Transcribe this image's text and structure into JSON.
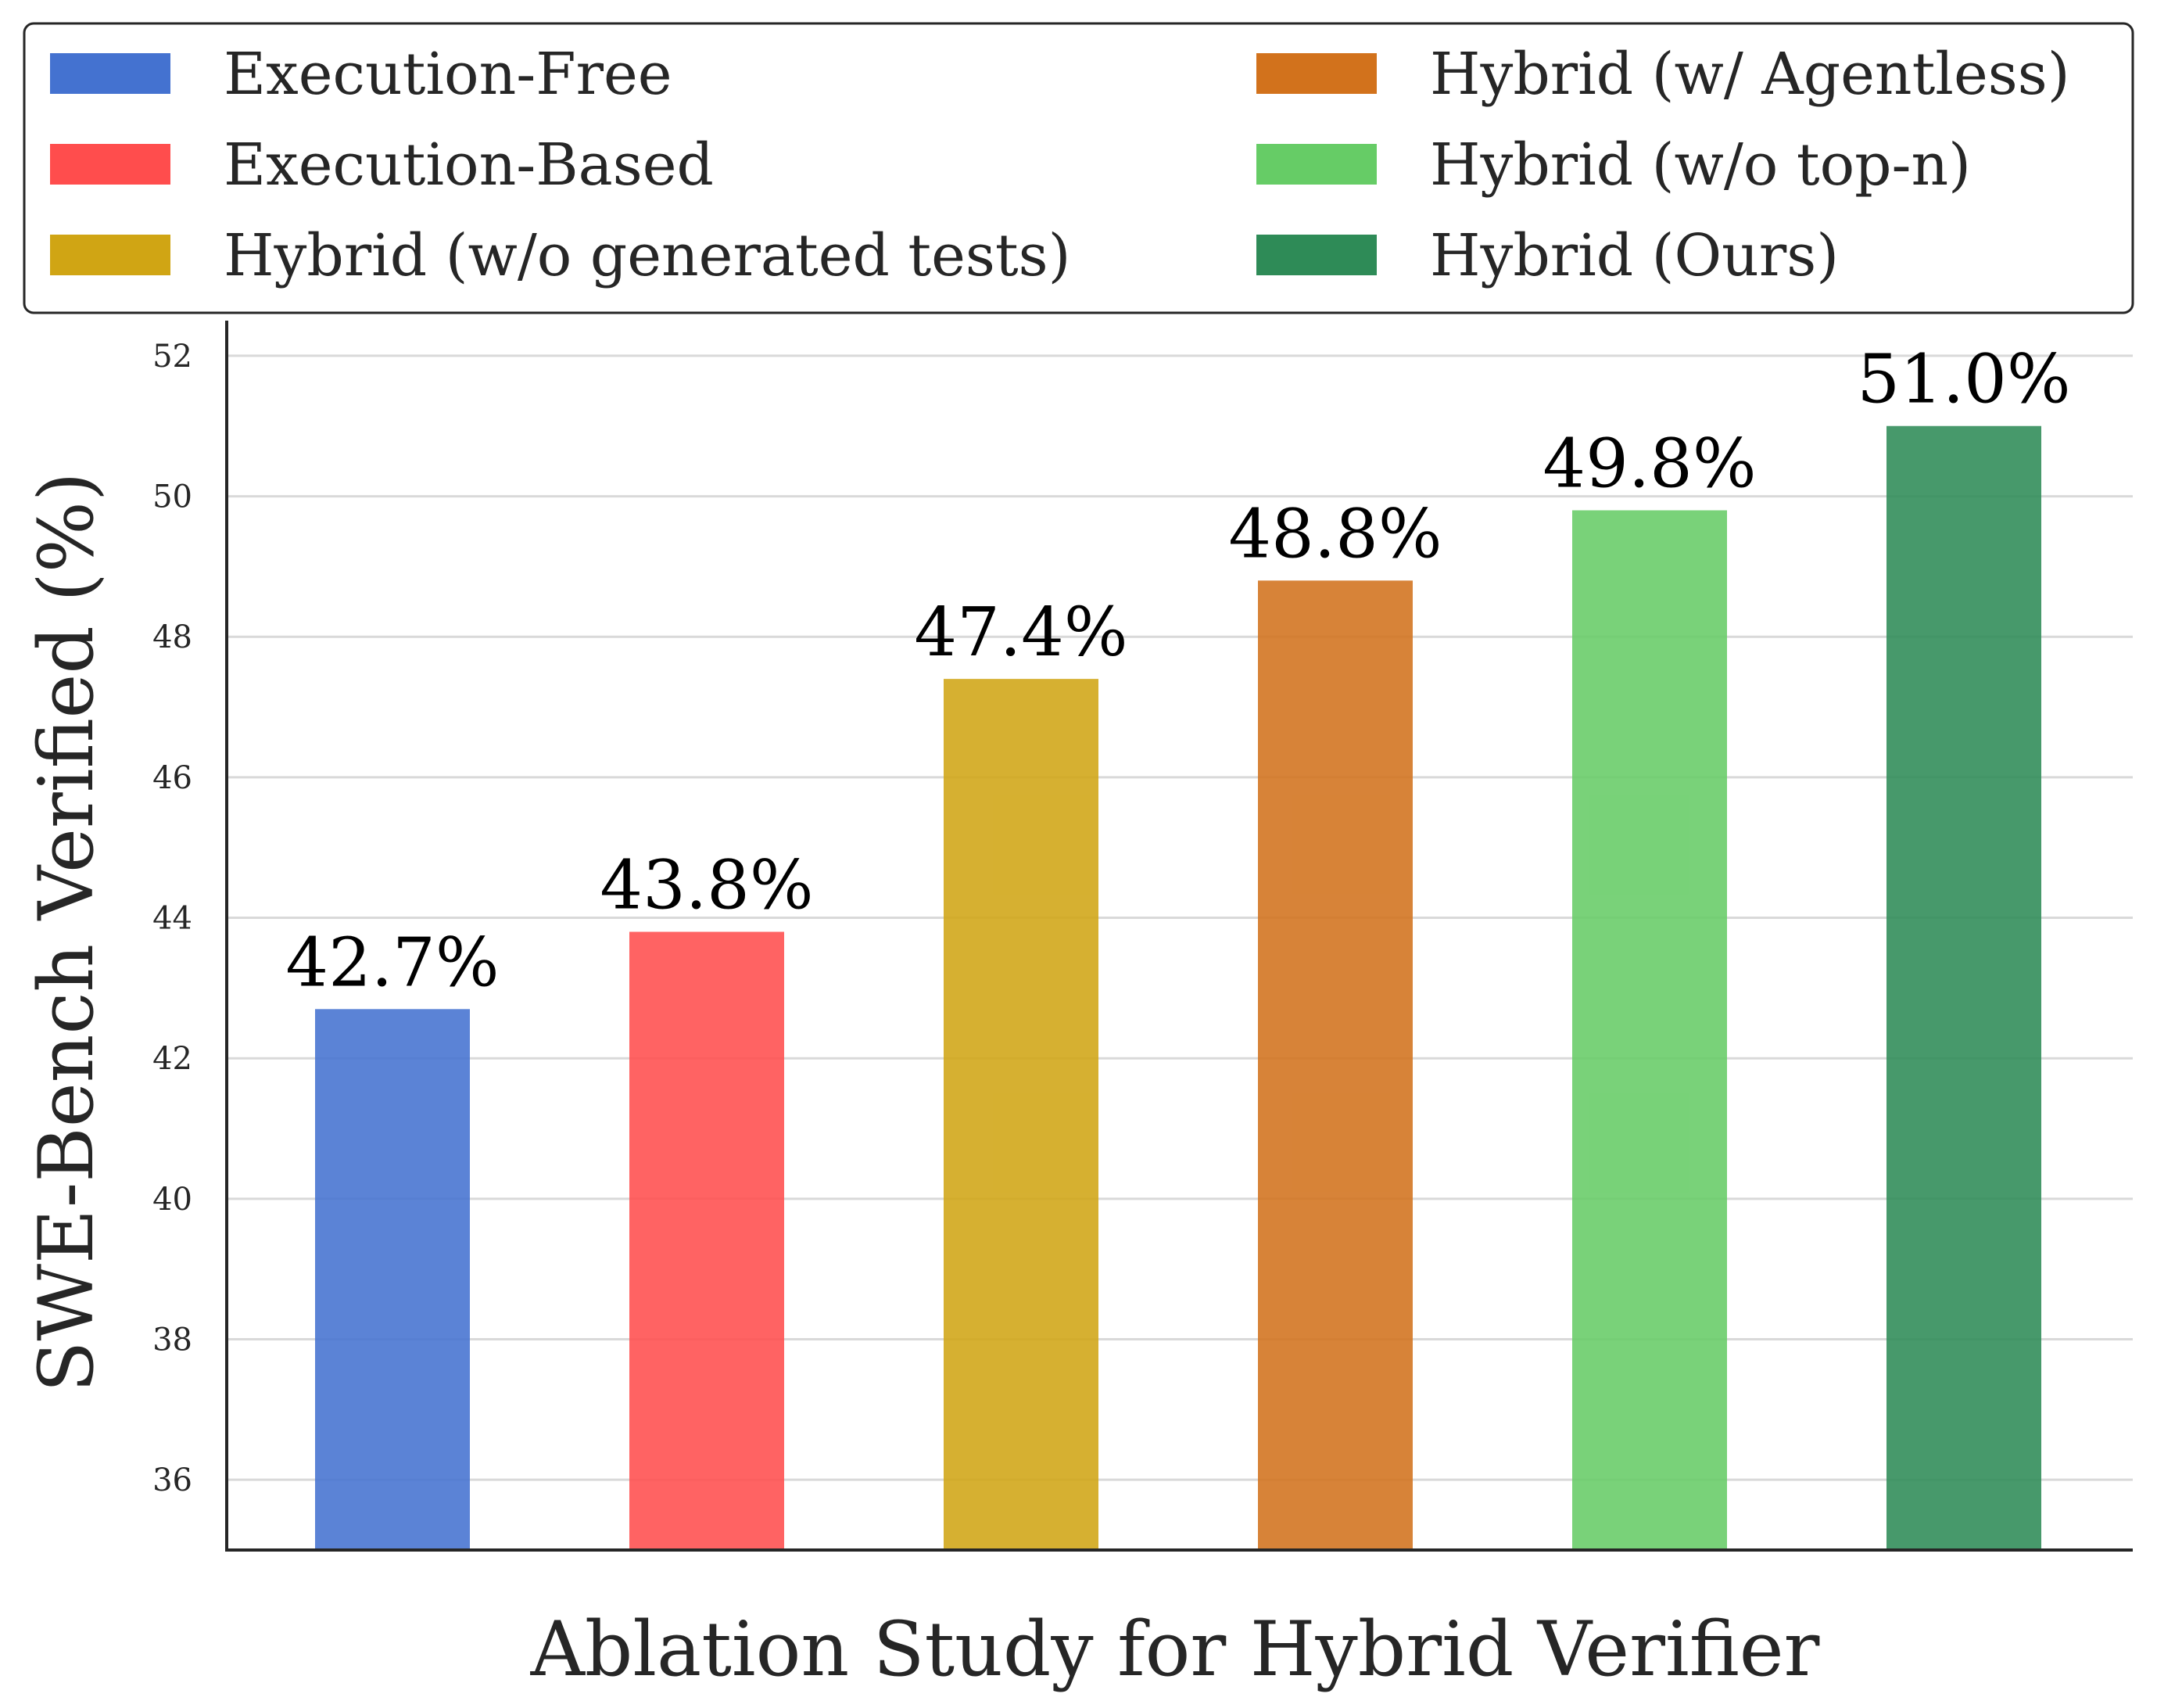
{
  "chart_data": {
    "type": "bar",
    "categories": [
      "Execution-Free",
      "Execution-Based",
      "Hybrid (w/o generated tests)",
      "Hybrid (w/ Agentless)",
      "Hybrid (w/o top-n)",
      "Hybrid (Ours)"
    ],
    "values": [
      42.7,
      43.8,
      47.4,
      48.8,
      49.8,
      51.0
    ],
    "data_labels": [
      "42.7%",
      "43.8%",
      "47.4%",
      "48.8%",
      "49.8%",
      "51.0%"
    ],
    "colors": [
      "#4472d0",
      "#ff4d4d",
      "#d0a514",
      "#d2721c",
      "#66cc66",
      "#2e8b57"
    ],
    "title": "",
    "xlabel": "Ablation Study for Hybrid Verifier",
    "ylabel": "SWE-Bench Verified (%)",
    "ylim": [
      35,
      52.5
    ],
    "yticks": [
      36,
      38,
      40,
      42,
      44,
      46,
      48,
      50,
      52
    ],
    "grid": "horizontal",
    "legend": {
      "placement": "top",
      "columns": 2,
      "entries": [
        "Execution-Free",
        "Execution-Based",
        "Hybrid (w/o generated tests)",
        "Hybrid (w/ Agentless)",
        "Hybrid (w/o top-n)",
        "Hybrid (Ours)"
      ]
    }
  }
}
